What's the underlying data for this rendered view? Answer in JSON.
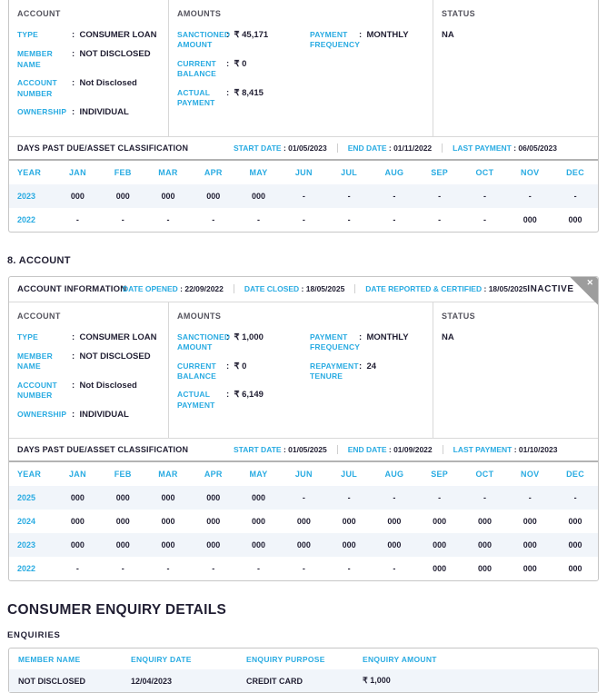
{
  "colors": {
    "accent": "#29abe2",
    "dark_text": "#211f33",
    "muted_title": "#55545e",
    "panel_border": "#c6c6c6",
    "divider": "#d8d8d8",
    "thick_divider": "#b3b3b3",
    "row_alt_bg": "#f1f5fa",
    "ribbon_gray": "#9d9d9d"
  },
  "panel1": {
    "account": {
      "title": "ACCOUNT",
      "fields": [
        {
          "label": "TYPE",
          "value": "CONSUMER LOAN"
        },
        {
          "label": "MEMBER NAME",
          "value": "NOT DISCLOSED"
        },
        {
          "label": "ACCOUNT NUMBER",
          "value": "Not Disclosed"
        },
        {
          "label": "OWNERSHIP",
          "value": "INDIVIDUAL"
        }
      ]
    },
    "amounts": {
      "title": "AMOUNTS",
      "left_fields": [
        {
          "label": "SANCTIONED AMOUNT",
          "value": "₹ 45,171"
        },
        {
          "label": "CURRENT BALANCE",
          "value": "₹ 0"
        },
        {
          "label": "ACTUAL PAYMENT",
          "value": "₹ 8,415"
        }
      ],
      "right_fields": [
        {
          "label": "PAYMENT FREQUENCY",
          "value": "MONTHLY"
        }
      ]
    },
    "status": {
      "title": "STATUS",
      "value": "NA"
    },
    "dpd": {
      "title": "DAYS PAST DUE/ASSET CLASSIFICATION",
      "start_date_label": "START DATE",
      "start_date": "01/05/2023",
      "end_date_label": "END DATE",
      "end_date": "01/11/2022",
      "last_payment_label": "LAST PAYMENT",
      "last_payment": "06/05/2023",
      "columns": [
        "YEAR",
        "JAN",
        "FEB",
        "MAR",
        "APR",
        "MAY",
        "JUN",
        "JUL",
        "AUG",
        "SEP",
        "OCT",
        "NOV",
        "DEC"
      ],
      "rows": [
        {
          "year": "2023",
          "values": [
            "000",
            "000",
            "000",
            "000",
            "000",
            "-",
            "-",
            "-",
            "-",
            "-",
            "-",
            "-"
          ]
        },
        {
          "year": "2022",
          "values": [
            "-",
            "-",
            "-",
            "-",
            "-",
            "-",
            "-",
            "-",
            "-",
            "-",
            "000",
            "000"
          ]
        }
      ]
    }
  },
  "section8": {
    "heading": "8. ACCOUNT"
  },
  "panel2": {
    "info_bar": {
      "title": "ACCOUNT INFORMATION",
      "date_opened_label": "DATE OPENED",
      "date_opened": "22/09/2022",
      "date_closed_label": "DATE CLOSED",
      "date_closed": "18/05/2025",
      "date_reported_label": "DATE REPORTED & CERTIFIED",
      "date_reported": "18/05/2025",
      "status_badge": "INACTIVE",
      "close_icon": "✕"
    },
    "account": {
      "title": "ACCOUNT",
      "fields": [
        {
          "label": "TYPE",
          "value": "CONSUMER LOAN"
        },
        {
          "label": "MEMBER NAME",
          "value": "NOT DISCLOSED"
        },
        {
          "label": "ACCOUNT NUMBER",
          "value": "Not Disclosed"
        },
        {
          "label": "OWNERSHIP",
          "value": "INDIVIDUAL"
        }
      ]
    },
    "amounts": {
      "title": "AMOUNTS",
      "left_fields": [
        {
          "label": "SANCTIONED AMOUNT",
          "value": "₹ 1,000"
        },
        {
          "label": "CURRENT BALANCE",
          "value": "₹ 0"
        },
        {
          "label": "ACTUAL PAYMENT",
          "value": "₹ 6,149"
        }
      ],
      "right_fields": [
        {
          "label": "PAYMENT FREQUENCY",
          "value": "MONTHLY"
        },
        {
          "label": "REPAYMENT TENURE",
          "value": "24"
        }
      ]
    },
    "status": {
      "title": "STATUS",
      "value": "NA"
    },
    "dpd": {
      "title": "DAYS PAST DUE/ASSET CLASSIFICATION",
      "start_date_label": "START DATE",
      "start_date": "01/05/2025",
      "end_date_label": "END DATE",
      "end_date": "01/09/2022",
      "last_payment_label": "LAST PAYMENT",
      "last_payment": "01/10/2023",
      "columns": [
        "YEAR",
        "JAN",
        "FEB",
        "MAR",
        "APR",
        "MAY",
        "JUN",
        "JUL",
        "AUG",
        "SEP",
        "OCT",
        "NOV",
        "DEC"
      ],
      "rows": [
        {
          "year": "2025",
          "values": [
            "000",
            "000",
            "000",
            "000",
            "000",
            "-",
            "-",
            "-",
            "-",
            "-",
            "-",
            "-"
          ]
        },
        {
          "year": "2024",
          "values": [
            "000",
            "000",
            "000",
            "000",
            "000",
            "000",
            "000",
            "000",
            "000",
            "000",
            "000",
            "000"
          ]
        },
        {
          "year": "2023",
          "values": [
            "000",
            "000",
            "000",
            "000",
            "000",
            "000",
            "000",
            "000",
            "000",
            "000",
            "000",
            "000"
          ]
        },
        {
          "year": "2022",
          "values": [
            "-",
            "-",
            "-",
            "-",
            "-",
            "-",
            "-",
            "-",
            "000",
            "000",
            "000",
            "000"
          ]
        }
      ]
    }
  },
  "enquiry_section": {
    "heading": "CONSUMER ENQUIRY DETAILS",
    "subheading": "ENQUIRIES",
    "table": {
      "headers": [
        "MEMBER NAME",
        "ENQUIRY DATE",
        "ENQUIRY PURPOSE",
        "ENQUIRY AMOUNT"
      ],
      "rows": [
        [
          "NOT DISCLOSED",
          "12/04/2023",
          "CREDIT CARD",
          "₹ 1,000"
        ]
      ]
    }
  }
}
